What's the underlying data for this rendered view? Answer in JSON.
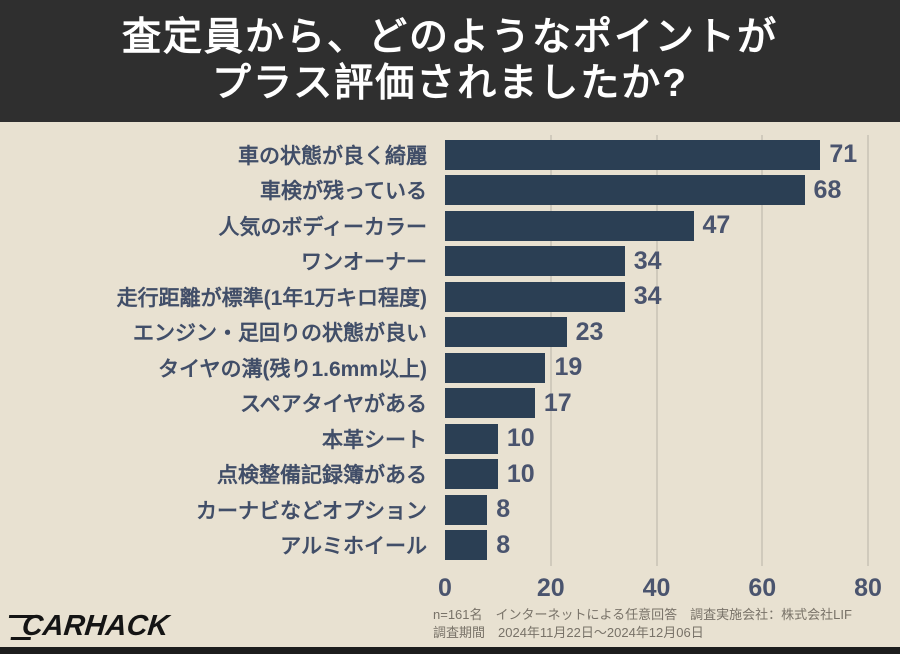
{
  "title": {
    "line1": "査定員から、どのようなポイントが",
    "line2": "プラス評価されましたか?"
  },
  "chart_data": {
    "type": "bar",
    "orientation": "horizontal",
    "title": "査定員から、どのようなポイントがプラス評価されましたか?",
    "categories": [
      "車の状態が良く綺麗",
      "車検が残っている",
      "人気のボディーカラー",
      "ワンオーナー",
      "走行距離が標準(1年1万キロ程度)",
      "エンジン・足回りの状態が良い",
      "タイヤの溝(残り1.6mm以上)",
      "スペアタイヤがある",
      "本革シート",
      "点検整備記録簿がある",
      "カーナビなどオプション",
      "アルミホイール"
    ],
    "values": [
      71,
      68,
      47,
      34,
      34,
      23,
      19,
      17,
      10,
      10,
      8,
      8
    ],
    "xlabel": "",
    "ylabel": "",
    "xlim": [
      0,
      80
    ],
    "xticks": [
      0,
      20,
      40,
      60,
      80
    ],
    "grid": true,
    "legend": false
  },
  "colors": {
    "background": "#e8e1d1",
    "title_band": "#2f2f2f",
    "title_text": "#ffffff",
    "bar": "#2b3f54",
    "category_label": "#414e68",
    "value_label": "#4a546e",
    "axis_label": "#4a546e",
    "gridline": "#b7b2a6",
    "footer_text": "#787268",
    "bottom_strip": "#1d1d1d"
  },
  "footer": {
    "logo_text": "CARHACK",
    "note_line1": "n=161名　インターネットによる任意回答　調査実施会社：株式会社LIF",
    "note_line2": "調査期間　2024年11月22日～2024年12月06日"
  }
}
